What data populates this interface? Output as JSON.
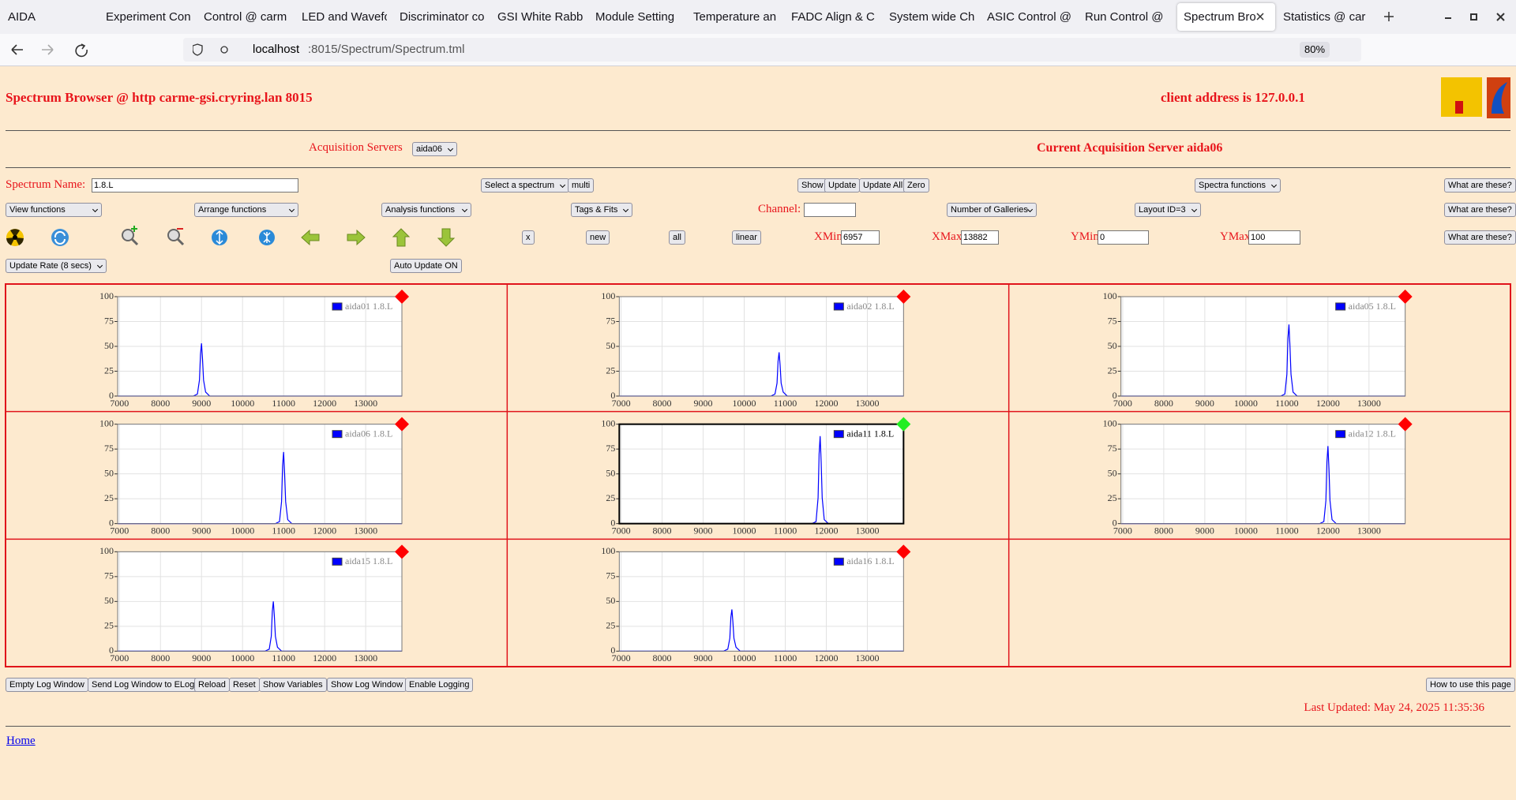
{
  "browser": {
    "tabs": [
      "AIDA",
      "Experiment Con",
      "Control @ carm",
      "LED and Wavefo",
      "Discriminator co",
      "GSI White Rabb",
      "Module Setting",
      "Temperature an",
      "FADC Align & C",
      "System wide Ch",
      "ASIC Control @",
      "Run Control @",
      "Spectrum Bro",
      "Statistics @ car"
    ],
    "url_host": "localhost",
    "url_rest": ":8015/Spectrum/Spectrum.tml",
    "zoom": "80%"
  },
  "header": {
    "title": "Spectrum Browser @ http carme-gsi.cryring.lan 8015",
    "client_address": "client address is 127.0.0.1",
    "acquisition_label": "Acquisition Servers",
    "acquisition_select": "aida06",
    "current_server": "Current Acquisition Server aida06"
  },
  "row1": {
    "spectrum_name_label": "Spectrum Name:",
    "spectrum_name": "1.8.L",
    "select_spectrum": "Select a spectrum",
    "multi": "multi",
    "show": "Show",
    "update": "Update",
    "update_all": "Update All",
    "zero": "Zero",
    "spectra_functions": "Spectra functions",
    "help": "What are these?"
  },
  "row2": {
    "view_functions": "View functions",
    "arrange_functions": "Arrange functions",
    "analysis_functions": "Analysis functions",
    "tags_fits": "Tags & Fits",
    "channel_label": "Channel:",
    "galleries": "Number of Galleries",
    "layout": "Layout ID=3",
    "help": "What are these?"
  },
  "row3": {
    "x": "x",
    "new": "new",
    "all": "all",
    "linear": "linear",
    "xmin_label": "XMin",
    "xmin": "6957",
    "xmax_label": "XMax",
    "xmax": "13882",
    "ymin_label": "YMin",
    "ymin": "0",
    "ymax_label": "YMax",
    "ymax": "100",
    "help": "What are these?"
  },
  "row4": {
    "update_rate": "Update Rate (8 secs)",
    "auto_update": "Auto Update ON"
  },
  "chart_data": [
    {
      "type": "line",
      "x": [
        6957,
        8800,
        8900,
        8950,
        8975,
        9000,
        9025,
        9050,
        9100,
        9200,
        13882
      ],
      "series": [
        {
          "name": "aida01 1.8.L",
          "color": "#0000ff",
          "values": [
            0,
            0,
            2,
            16,
            42,
            53,
            37,
            16,
            4,
            0,
            0
          ]
        }
      ],
      "xlim": [
        6957,
        13882
      ],
      "ylim": [
        0,
        100
      ],
      "xticks": [
        7000,
        8000,
        9000,
        10000,
        11000,
        12000,
        13000
      ],
      "yticks": [
        0,
        25,
        50,
        75,
        100
      ],
      "grid": true,
      "marker_color": "#ff0000",
      "selected": false
    },
    {
      "type": "line",
      "x": [
        6957,
        10650,
        10750,
        10800,
        10825,
        10850,
        10875,
        10900,
        10950,
        11050,
        13882
      ],
      "series": [
        {
          "name": "aida02 1.8.L",
          "color": "#0000ff",
          "values": [
            0,
            0,
            2,
            13,
            35,
            44,
            31,
            13,
            4,
            0,
            0
          ]
        }
      ],
      "xlim": [
        6957,
        13882
      ],
      "ylim": [
        0,
        100
      ],
      "xticks": [
        7000,
        8000,
        9000,
        10000,
        11000,
        12000,
        13000
      ],
      "yticks": [
        0,
        25,
        50,
        75,
        100
      ],
      "grid": true,
      "marker_color": "#ff0000",
      "selected": false
    },
    {
      "type": "line",
      "x": [
        6957,
        10850,
        10950,
        11000,
        11025,
        11050,
        11075,
        11100,
        11150,
        11250,
        13882
      ],
      "series": [
        {
          "name": "aida05 1.8.L",
          "color": "#0000ff",
          "values": [
            0,
            0,
            2,
            22,
            58,
            72,
            50,
            22,
            4,
            0,
            0
          ]
        }
      ],
      "xlim": [
        6957,
        13882
      ],
      "ylim": [
        0,
        100
      ],
      "xticks": [
        7000,
        8000,
        9000,
        10000,
        11000,
        12000,
        13000
      ],
      "yticks": [
        0,
        25,
        50,
        75,
        100
      ],
      "grid": true,
      "marker_color": "#ff0000",
      "selected": false
    },
    {
      "type": "line",
      "x": [
        6957,
        10800,
        10900,
        10950,
        10975,
        11000,
        11025,
        11050,
        11100,
        11200,
        13882
      ],
      "series": [
        {
          "name": "aida06 1.8.L",
          "color": "#0000ff",
          "values": [
            0,
            0,
            2,
            22,
            58,
            72,
            50,
            22,
            4,
            0,
            0
          ]
        }
      ],
      "xlim": [
        6957,
        13882
      ],
      "ylim": [
        0,
        100
      ],
      "xticks": [
        7000,
        8000,
        9000,
        10000,
        11000,
        12000,
        13000
      ],
      "yticks": [
        0,
        25,
        50,
        75,
        100
      ],
      "grid": true,
      "marker_color": "#ff0000",
      "selected": false
    },
    {
      "type": "line",
      "x": [
        6957,
        11650,
        11750,
        11800,
        11825,
        11850,
        11875,
        11900,
        11950,
        12050,
        13882
      ],
      "series": [
        {
          "name": "aida11 1.8.L",
          "color": "#0000ff",
          "values": [
            0,
            0,
            2,
            26,
            70,
            88,
            62,
            26,
            4,
            0,
            0
          ]
        }
      ],
      "xlim": [
        6957,
        13882
      ],
      "ylim": [
        0,
        100
      ],
      "xticks": [
        7000,
        8000,
        9000,
        10000,
        11000,
        12000,
        13000
      ],
      "yticks": [
        0,
        25,
        50,
        75,
        100
      ],
      "grid": true,
      "marker_color": "#22ee22",
      "selected": true
    },
    {
      "type": "line",
      "x": [
        6957,
        11800,
        11900,
        11950,
        11975,
        12000,
        12025,
        12050,
        12100,
        12200,
        13882
      ],
      "series": [
        {
          "name": "aida12 1.8.L",
          "color": "#0000ff",
          "values": [
            0,
            0,
            2,
            23,
            62,
            78,
            55,
            23,
            4,
            0,
            0
          ]
        }
      ],
      "xlim": [
        6957,
        13882
      ],
      "ylim": [
        0,
        100
      ],
      "xticks": [
        7000,
        8000,
        9000,
        10000,
        11000,
        12000,
        13000
      ],
      "yticks": [
        0,
        25,
        50,
        75,
        100
      ],
      "grid": true,
      "marker_color": "#ff0000",
      "selected": false
    },
    {
      "type": "line",
      "x": [
        6957,
        10550,
        10650,
        10700,
        10725,
        10750,
        10775,
        10800,
        10850,
        10950,
        13882
      ],
      "series": [
        {
          "name": "aida15 1.8.L",
          "color": "#0000ff",
          "values": [
            0,
            0,
            2,
            15,
            40,
            50,
            35,
            15,
            4,
            0,
            0
          ]
        }
      ],
      "xlim": [
        6957,
        13882
      ],
      "ylim": [
        0,
        100
      ],
      "xticks": [
        7000,
        8000,
        9000,
        10000,
        11000,
        12000,
        13000
      ],
      "yticks": [
        0,
        25,
        50,
        75,
        100
      ],
      "grid": true,
      "marker_color": "#ff0000",
      "selected": false
    },
    {
      "type": "line",
      "x": [
        6957,
        9500,
        9600,
        9650,
        9675,
        9700,
        9725,
        9750,
        9800,
        9900,
        13882
      ],
      "series": [
        {
          "name": "aida16 1.8.L",
          "color": "#0000ff",
          "values": [
            0,
            0,
            2,
            13,
            34,
            42,
            29,
            13,
            4,
            0,
            0
          ]
        }
      ],
      "xlim": [
        6957,
        13882
      ],
      "ylim": [
        0,
        100
      ],
      "xticks": [
        7000,
        8000,
        9000,
        10000,
        11000,
        12000,
        13000
      ],
      "yticks": [
        0,
        25,
        50,
        75,
        100
      ],
      "grid": true,
      "marker_color": "#ff0000",
      "selected": false
    }
  ],
  "footer": {
    "buttons": [
      "Empty Log Window",
      "Send Log Window to ELog",
      "Reload",
      "Reset",
      "Show Variables",
      "Show Log Window",
      "Enable Logging"
    ],
    "how_to": "How to use this page",
    "last_updated": "Last Updated: May 24, 2025 11:35:36",
    "home": "Home"
  }
}
